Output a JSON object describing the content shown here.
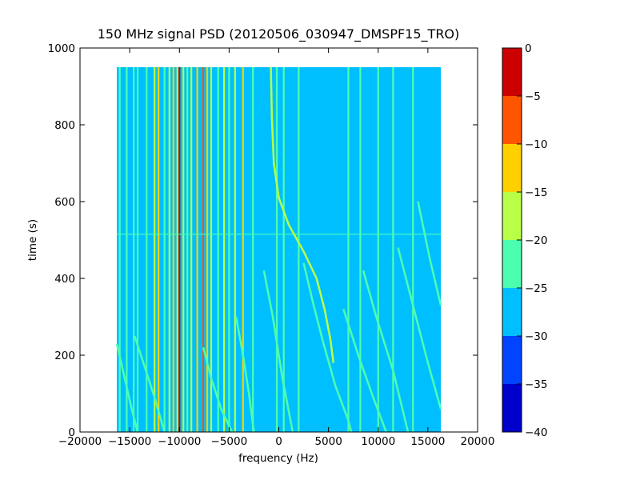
{
  "chart_data": {
    "type": "heatmap",
    "title": "150 MHz signal PSD (20120506_030947_DMSPF15_TRO)",
    "xlabel": "frequency (Hz)",
    "ylabel": "time (s)",
    "xlim": [
      -20000,
      20000
    ],
    "ylim": [
      0,
      1000
    ],
    "x_ticks": [
      -20000,
      -15000,
      -10000,
      -5000,
      0,
      5000,
      10000,
      15000,
      20000
    ],
    "y_ticks": [
      0,
      200,
      400,
      600,
      800,
      1000
    ],
    "data_extent": {
      "x": [
        -16300,
        16300
      ],
      "y": [
        0,
        950
      ]
    },
    "background_level": -27.5,
    "colorbar": {
      "levels": [
        -40,
        -35,
        -30,
        -25,
        -20,
        -15,
        -10,
        -5,
        0
      ],
      "colors": [
        "#0000cc",
        "#0044ff",
        "#00bfff",
        "#4cffb0",
        "#b8ff48",
        "#ffd000",
        "#ff5500",
        "#cc0000"
      ],
      "tick_labels": [
        "−40",
        "−35",
        "−30",
        "−25",
        "−20",
        "−15",
        "−10",
        "−5",
        "0"
      ]
    },
    "vertical_lines": [
      {
        "f": -16000,
        "level": -22.5
      },
      {
        "f": -15300,
        "level": -22.5
      },
      {
        "f": -14600,
        "level": -22.5
      },
      {
        "f": -14200,
        "level": -22.5
      },
      {
        "f": -13300,
        "level": -22.5
      },
      {
        "f": -12500,
        "level": -17.5
      },
      {
        "f": -12100,
        "level": -12.5
      },
      {
        "f": -11500,
        "level": -22.5
      },
      {
        "f": -11000,
        "level": -17.5
      },
      {
        "f": -10600,
        "level": -12.5
      },
      {
        "f": -10200,
        "level": -17.5
      },
      {
        "f": -10000,
        "level": -2.5
      },
      {
        "f": -9600,
        "level": -17.5
      },
      {
        "f": -9200,
        "level": -22.5
      },
      {
        "f": -8800,
        "level": -17.5
      },
      {
        "f": -8200,
        "level": -12.5
      },
      {
        "f": -7600,
        "level": -7.5
      },
      {
        "f": -7200,
        "level": -12.5
      },
      {
        "f": -6800,
        "level": -17.5
      },
      {
        "f": -6100,
        "level": -22.5
      },
      {
        "f": -5500,
        "level": -17.5
      },
      {
        "f": -5000,
        "level": -22.5
      },
      {
        "f": -4400,
        "level": -17.5
      },
      {
        "f": -3600,
        "level": -12.5
      },
      {
        "f": -2600,
        "level": -22.5
      },
      {
        "f": -200,
        "level": -22.5
      },
      {
        "f": 500,
        "level": -22.5
      },
      {
        "f": 2000,
        "level": -22.5
      },
      {
        "f": 7000,
        "level": -22.5
      },
      {
        "f": 8200,
        "level": -22.5
      },
      {
        "f": 10000,
        "level": -22.5
      },
      {
        "f": 11500,
        "level": -22.5
      },
      {
        "f": 13500,
        "level": -22.5
      }
    ],
    "sweep_traces": [
      {
        "level": -17.5,
        "points": [
          [
            -800,
            950
          ],
          [
            -700,
            820
          ],
          [
            -500,
            700
          ],
          [
            0,
            610
          ],
          [
            1000,
            540
          ],
          [
            2500,
            470
          ],
          [
            3800,
            400
          ],
          [
            4600,
            320
          ],
          [
            5200,
            240
          ],
          [
            5500,
            180
          ]
        ]
      },
      {
        "level": -22.5,
        "points": [
          [
            2500,
            440
          ],
          [
            3500,
            330
          ],
          [
            4500,
            230
          ],
          [
            5700,
            120
          ],
          [
            7000,
            30
          ],
          [
            7300,
            0
          ]
        ]
      },
      {
        "level": -22.5,
        "points": [
          [
            -16300,
            230
          ],
          [
            -15500,
            140
          ],
          [
            -14800,
            60
          ],
          [
            -14200,
            0
          ]
        ]
      },
      {
        "level": -22.5,
        "points": [
          [
            -14500,
            250
          ],
          [
            -13500,
            170
          ],
          [
            -12500,
            90
          ],
          [
            -11500,
            0
          ]
        ]
      },
      {
        "level": -22.5,
        "points": [
          [
            -7600,
            220
          ],
          [
            -6800,
            140
          ],
          [
            -5800,
            60
          ],
          [
            -4700,
            0
          ]
        ]
      },
      {
        "level": -22.5,
        "points": [
          [
            -4300,
            300
          ],
          [
            -3600,
            200
          ],
          [
            -3000,
            100
          ],
          [
            -2500,
            0
          ]
        ]
      },
      {
        "level": -22.5,
        "points": [
          [
            -1500,
            420
          ],
          [
            -600,
            300
          ],
          [
            300,
            150
          ],
          [
            1400,
            0
          ]
        ]
      },
      {
        "level": -22.5,
        "points": [
          [
            6500,
            320
          ],
          [
            8000,
            200
          ],
          [
            9500,
            90
          ],
          [
            10800,
            0
          ]
        ]
      },
      {
        "level": -22.5,
        "points": [
          [
            8500,
            420
          ],
          [
            9800,
            300
          ],
          [
            11500,
            160
          ],
          [
            13000,
            0
          ]
        ]
      },
      {
        "level": -22.5,
        "points": [
          [
            12000,
            480
          ],
          [
            13500,
            330
          ],
          [
            15000,
            180
          ],
          [
            16300,
            60
          ]
        ]
      },
      {
        "level": -22.5,
        "points": [
          [
            14000,
            600
          ],
          [
            15200,
            450
          ],
          [
            16300,
            330
          ]
        ]
      }
    ],
    "horizontal_lines": [
      {
        "t": 515,
        "level": -22.5
      }
    ]
  }
}
